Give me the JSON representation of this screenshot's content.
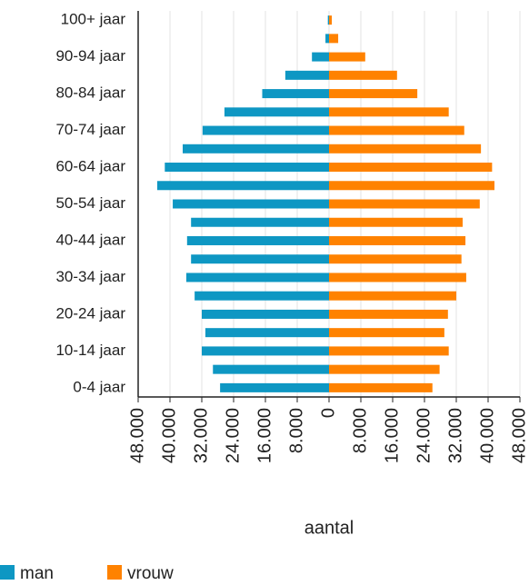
{
  "chart_data": {
    "type": "pyramid",
    "xlabel": "aantal",
    "categories": [
      "100+ jaar",
      null,
      "90-94 jaar",
      null,
      "80-84 jaar",
      null,
      "70-74 jaar",
      null,
      "60-64 jaar",
      null,
      "50-54 jaar",
      null,
      "40-44 jaar",
      null,
      "30-34 jaar",
      null,
      "20-24 jaar",
      null,
      "10-14 jaar",
      null,
      "0-4 jaar"
    ],
    "series": [
      {
        "name": "man",
        "color": "#0e97c3",
        "values": [
          -300,
          -900,
          -4300,
          -11000,
          -16800,
          -26300,
          -31800,
          -36800,
          -41300,
          -43200,
          -39300,
          -34700,
          -35700,
          -34700,
          -35900,
          -33800,
          -32000,
          -31100,
          -32000,
          -29200,
          -27400
        ]
      },
      {
        "name": "vrouw",
        "color": "#ff8200",
        "values": [
          700,
          2300,
          9100,
          17100,
          22200,
          30100,
          34000,
          38200,
          41000,
          41600,
          37900,
          33600,
          34300,
          33300,
          34500,
          32000,
          29900,
          29000,
          30100,
          27800,
          26000
        ]
      }
    ],
    "xlim": [
      -48000,
      48000
    ],
    "xticks": [
      {
        "value": -48000,
        "label": "48.000"
      },
      {
        "value": -40000,
        "label": "40.000"
      },
      {
        "value": -32000,
        "label": "32.000"
      },
      {
        "value": -24000,
        "label": "24.000"
      },
      {
        "value": -16000,
        "label": "16.000"
      },
      {
        "value": -8000,
        "label": "8.000"
      },
      0,
      {
        "value": 8000,
        "label": "8.000"
      },
      {
        "value": 16000,
        "label": "16.000"
      },
      {
        "value": 24000,
        "label": "24.000"
      },
      {
        "value": 32000,
        "label": "32.000"
      },
      {
        "value": 40000,
        "label": "40.000"
      },
      {
        "value": 48000,
        "label": "48.000"
      }
    ],
    "grid": true
  }
}
